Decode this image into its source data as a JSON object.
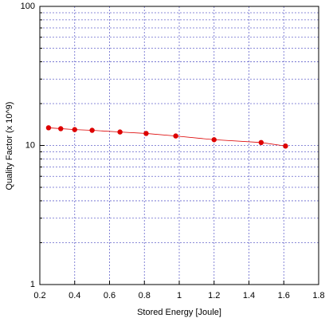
{
  "chart_data": {
    "type": "line",
    "xlabel": "Stored Energy [Joule]",
    "ylabel": "Quality Factor (x 10^9)",
    "x": [
      0.25,
      0.32,
      0.4,
      0.5,
      0.66,
      0.81,
      0.98,
      1.2,
      1.47,
      1.61
    ],
    "series": [
      {
        "color": "#dd0000",
        "values": [
          13.4,
          13.2,
          13.0,
          12.85,
          12.5,
          12.2,
          11.7,
          11.0,
          10.5,
          9.9
        ]
      }
    ],
    "xlim": [
      0.2,
      1.8
    ],
    "xticks": [
      0.2,
      0.4,
      0.6,
      0.8,
      1,
      1.2,
      1.4,
      1.6,
      1.8
    ],
    "ylim": [
      1,
      100
    ],
    "yticks": [
      1,
      10,
      100
    ],
    "y_minor_ticks": [
      2,
      3,
      4,
      5,
      6,
      7,
      8,
      9,
      20,
      30,
      40,
      50,
      60,
      70,
      80,
      90
    ],
    "ylog": true,
    "grid": true,
    "grid_color": "#6666cc"
  }
}
